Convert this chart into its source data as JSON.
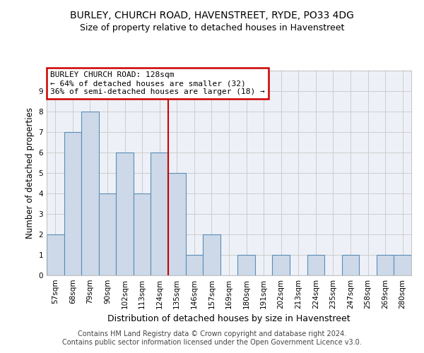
{
  "title1": "BURLEY, CHURCH ROAD, HAVENSTREET, RYDE, PO33 4DG",
  "title2": "Size of property relative to detached houses in Havenstreet",
  "xlabel": "Distribution of detached houses by size in Havenstreet",
  "ylabel": "Number of detached properties",
  "categories": [
    "57sqm",
    "68sqm",
    "79sqm",
    "90sqm",
    "102sqm",
    "113sqm",
    "124sqm",
    "135sqm",
    "146sqm",
    "157sqm",
    "169sqm",
    "180sqm",
    "191sqm",
    "202sqm",
    "213sqm",
    "224sqm",
    "235sqm",
    "247sqm",
    "258sqm",
    "269sqm",
    "280sqm"
  ],
  "values": [
    2,
    7,
    8,
    4,
    6,
    4,
    6,
    5,
    1,
    2,
    0,
    1,
    0,
    1,
    0,
    1,
    0,
    1,
    0,
    1,
    1
  ],
  "bar_color": "#cdd9e8",
  "bar_edgecolor": "#5b8db8",
  "bar_linewidth": 0.8,
  "red_line_x": 6.5,
  "annotation_title": "BURLEY CHURCH ROAD: 128sqm",
  "annotation_line2": "← 64% of detached houses are smaller (32)",
  "annotation_line3": "36% of semi-detached houses are larger (18) →",
  "annotation_box_color": "#ffffff",
  "annotation_box_edgecolor": "#cc0000",
  "red_line_color": "#cc0000",
  "ylim": [
    0,
    10
  ],
  "yticks": [
    0,
    1,
    2,
    3,
    4,
    5,
    6,
    7,
    8,
    9
  ],
  "grid_color": "#cccccc",
  "background_color": "#edf1f7",
  "footer1": "Contains HM Land Registry data © Crown copyright and database right 2024.",
  "footer2": "Contains public sector information licensed under the Open Government Licence v3.0.",
  "title1_fontsize": 10,
  "title2_fontsize": 9,
  "xlabel_fontsize": 9,
  "ylabel_fontsize": 8.5,
  "tick_fontsize": 7.5,
  "annotation_fontsize": 8,
  "footer_fontsize": 7
}
